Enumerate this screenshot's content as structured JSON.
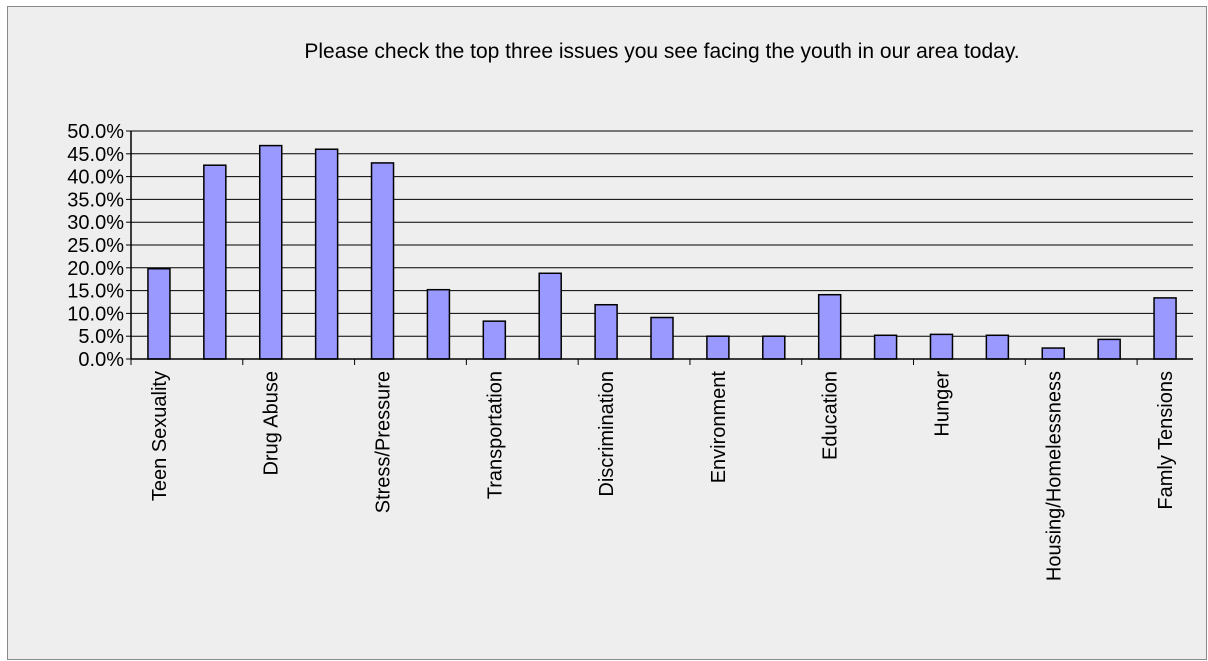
{
  "chart_data": {
    "type": "bar",
    "title": "Please check the top three issues you see facing the youth in our area today.",
    "categories": [
      "Teen Sexuality",
      "",
      "Drug Abuse",
      "",
      "Stress/Pressure",
      "",
      "Transportation",
      "",
      "Discrimination",
      "",
      "Environment",
      "",
      "Education",
      "",
      "Hunger",
      "",
      "Housing/Homelessness",
      "",
      "Famly Tensions"
    ],
    "values": [
      19.8,
      42.5,
      46.8,
      46.0,
      43.0,
      15.2,
      8.3,
      18.8,
      11.9,
      9.1,
      5.0,
      5.0,
      14.1,
      5.2,
      5.4,
      5.2,
      2.4,
      4.3,
      13.4
    ],
    "ylim": [
      0,
      50
    ],
    "yticks": [
      "0.0%",
      "5.0%",
      "10.0%",
      "15.0%",
      "20.0%",
      "25.0%",
      "30.0%",
      "35.0%",
      "40.0%",
      "45.0%",
      "50.0%"
    ],
    "grid": true,
    "bar_color": "#9999ff",
    "bar_edge_color": "#000000",
    "background_color": "#eeeeee"
  }
}
